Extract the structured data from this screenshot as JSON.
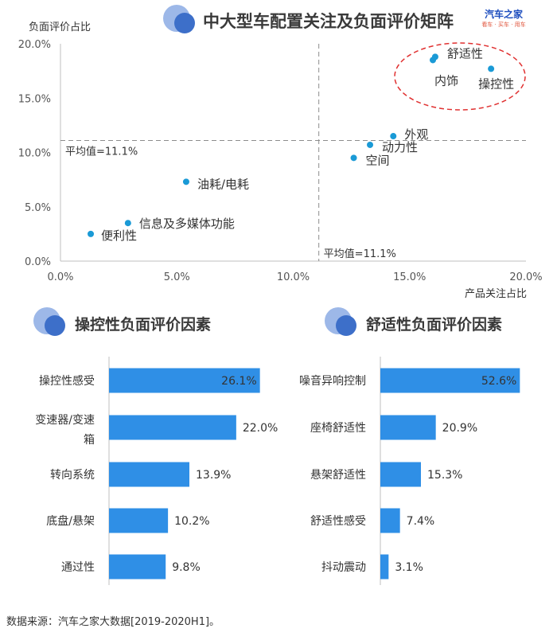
{
  "header": {
    "title": "中大型车配置关注及负面评价矩阵",
    "brand_name": "汽车之家",
    "brand_tagline": "看车 · 买车 · 用车"
  },
  "source_note": "数据来源：汽车之家大数据[2019-2020H1]。",
  "colors": {
    "accent": "#2f8fe6",
    "point": "#1a9ad6",
    "ellipse": "#e03030",
    "icon_light": "#9db8e8",
    "icon_dark": "#3d6fc9"
  },
  "chart_data": [
    {
      "type": "scatter",
      "title": "中大型车配置关注及负面评价矩阵",
      "xlabel": "产品关注占比",
      "ylabel": "负面评价占比",
      "xlim": [
        0,
        20
      ],
      "ylim": [
        0,
        20
      ],
      "xticks": [
        "0.0%",
        "5.0%",
        "10.0%",
        "15.0%",
        "20.0%"
      ],
      "yticks": [
        "0.0%",
        "5.0%",
        "10.0%",
        "15.0%",
        "20.0%"
      ],
      "grid": false,
      "reference_lines": [
        {
          "axis": "x",
          "value": 11.1,
          "label": "平均值=11.1%"
        },
        {
          "axis": "y",
          "value": 11.1,
          "label": "平均值=11.1%"
        }
      ],
      "points": [
        {
          "label": "便利性",
          "x": 1.3,
          "y": 2.5
        },
        {
          "label": "信息及多媒体功能",
          "x": 2.9,
          "y": 3.5
        },
        {
          "label": "油耗/电耗",
          "x": 5.4,
          "y": 7.3
        },
        {
          "label": "空间",
          "x": 12.6,
          "y": 9.5
        },
        {
          "label": "动力性",
          "x": 13.3,
          "y": 10.7
        },
        {
          "label": "外观",
          "x": 14.3,
          "y": 11.5
        },
        {
          "label": "舒适性",
          "x": 16.1,
          "y": 18.8
        },
        {
          "label": "内饰",
          "x": 16.0,
          "y": 18.5
        },
        {
          "label": "操控性",
          "x": 18.5,
          "y": 17.7
        }
      ]
    },
    {
      "type": "bar",
      "title": "操控性负面评价因素",
      "categories": [
        "操控性感受",
        "变速器/变速箱",
        "转向系统",
        "底盘/悬架",
        "通过性"
      ],
      "values": [
        26.1,
        22.0,
        13.9,
        10.2,
        9.8
      ],
      "value_labels": [
        "26.1%",
        "22.0%",
        "13.9%",
        "10.2%",
        "9.8%"
      ],
      "xlim": [
        0,
        30
      ]
    },
    {
      "type": "bar",
      "title": "舒适性负面评价因素",
      "categories": [
        "噪音异响控制",
        "座椅舒适性",
        "悬架舒适性",
        "舒适性感受",
        "抖动震动"
      ],
      "values": [
        52.6,
        20.9,
        15.3,
        7.4,
        3.1
      ],
      "value_labels": [
        "52.6%",
        "20.9%",
        "15.3%",
        "7.4%",
        "3.1%"
      ],
      "xlim": [
        0,
        60
      ]
    }
  ]
}
